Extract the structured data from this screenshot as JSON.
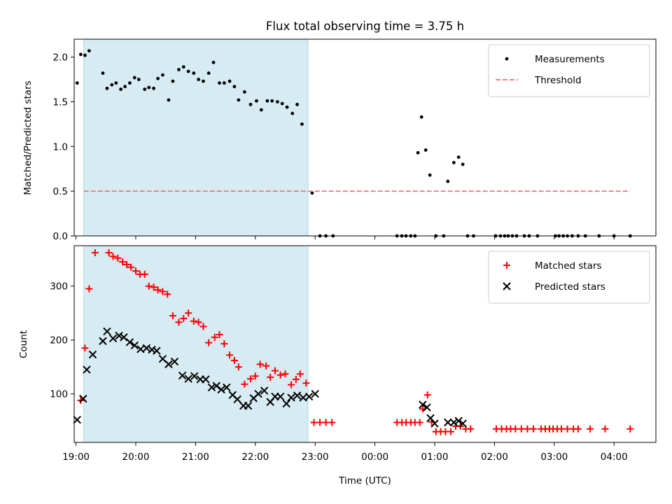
{
  "chart_data": [
    {
      "type": "scatter",
      "title": "Flux total observing time = 3.75 h",
      "ylabel": "Matched/Predicted stars",
      "xlabel": "",
      "x_unit": "hours after 19:00 UTC",
      "xlim": [
        18.97,
        28.7
      ],
      "ylim": [
        0,
        2.2
      ],
      "yticks": [
        0.0,
        0.5,
        1.0,
        1.5,
        2.0
      ],
      "ytick_labels": [
        "0.0",
        "0.5",
        "1.0",
        "1.5",
        "2.0"
      ],
      "legend_position": "top-right",
      "shaded_region": {
        "x": [
          19.13,
          22.88
        ],
        "color": "#add8e6"
      },
      "series": [
        {
          "name": "Measurements",
          "color": "#000000",
          "marker": "dot",
          "x": [
            19.02,
            19.08,
            19.15,
            19.22,
            19.45,
            19.52,
            19.6,
            19.67,
            19.75,
            19.82,
            19.9,
            19.98,
            20.05,
            20.15,
            20.22,
            20.3,
            20.37,
            20.45,
            20.55,
            20.62,
            20.72,
            20.8,
            20.88,
            20.97,
            21.05,
            21.13,
            21.22,
            21.3,
            21.4,
            21.48,
            21.57,
            21.65,
            21.72,
            21.82,
            21.92,
            22.02,
            22.1,
            22.2,
            22.28,
            22.37,
            22.45,
            22.53,
            22.62,
            22.7,
            22.78,
            22.95,
            23.08,
            23.18,
            23.3,
            24.37,
            24.45,
            24.52,
            24.6,
            24.67,
            24.72,
            24.78,
            24.85,
            24.92,
            25.02,
            25.15,
            25.22,
            25.32,
            25.4,
            25.47,
            25.55,
            25.65,
            26.02,
            26.1,
            26.17,
            26.23,
            26.3,
            26.37,
            26.5,
            26.58,
            26.72,
            27.02,
            27.08,
            27.15,
            27.22,
            27.3,
            27.4,
            27.52,
            27.75,
            28.0,
            28.27
          ],
          "y": [
            1.71,
            2.03,
            2.02,
            2.07,
            1.82,
            1.65,
            1.69,
            1.71,
            1.64,
            1.67,
            1.71,
            1.77,
            1.75,
            1.64,
            1.66,
            1.65,
            1.76,
            1.8,
            1.52,
            1.73,
            1.86,
            1.89,
            1.84,
            1.82,
            1.75,
            1.73,
            1.82,
            1.94,
            1.71,
            1.71,
            1.73,
            1.67,
            1.52,
            1.61,
            1.47,
            1.51,
            1.41,
            1.51,
            1.51,
            1.5,
            1.48,
            1.44,
            1.37,
            1.47,
            1.25,
            0.48,
            0.0,
            0.0,
            0.0,
            0.0,
            0.0,
            0.0,
            0.0,
            0.0,
            0.93,
            1.33,
            0.96,
            0.68,
            0.0,
            0.0,
            0.61,
            0.82,
            0.88,
            0.8,
            0.0,
            0.0,
            0.0,
            0.0,
            0.0,
            0.0,
            0.0,
            0.0,
            0.0,
            0.0,
            0.0,
            0.0,
            0.0,
            0.0,
            0.0,
            0.0,
            0.0,
            0.0,
            0.0,
            0.0,
            0.0
          ]
        },
        {
          "name": "Threshold",
          "color": "#f08080",
          "style": "dashed-line",
          "x": [
            19.13,
            28.27
          ],
          "y": [
            0.5,
            0.5
          ]
        }
      ]
    },
    {
      "type": "scatter",
      "title": "",
      "ylabel": "Count",
      "xlabel": "Time (UTC)",
      "x_unit": "hours after 19:00 UTC",
      "xlim": [
        18.97,
        28.7
      ],
      "ylim": [
        10,
        375
      ],
      "yticks": [
        100,
        200,
        300
      ],
      "ytick_labels": [
        "100",
        "200",
        "300"
      ],
      "xticks": [
        19,
        20,
        21,
        22,
        23,
        24,
        25,
        26,
        27,
        28
      ],
      "xtick_labels": [
        "19:00",
        "20:00",
        "21:00",
        "22:00",
        "23:00",
        "00:00",
        "01:00",
        "02:00",
        "03:00",
        "04:00"
      ],
      "legend_position": "top-right",
      "shaded_region": {
        "x": [
          19.13,
          22.88
        ],
        "color": "#add8e6"
      },
      "series": [
        {
          "name": "Matched stars",
          "color": "#ff0000",
          "marker": "plus",
          "x": [
            19.08,
            19.15,
            19.22,
            19.32,
            19.55,
            19.62,
            19.7,
            19.78,
            19.85,
            19.92,
            20.0,
            20.07,
            20.15,
            20.22,
            20.3,
            20.37,
            20.45,
            20.53,
            20.62,
            20.72,
            20.8,
            20.88,
            20.97,
            21.05,
            21.13,
            21.22,
            21.32,
            21.4,
            21.48,
            21.57,
            21.65,
            21.72,
            21.82,
            21.92,
            22.0,
            22.08,
            22.18,
            22.25,
            22.33,
            22.42,
            22.5,
            22.6,
            22.68,
            22.75,
            22.85,
            22.98,
            23.08,
            23.18,
            23.28,
            24.37,
            24.45,
            24.52,
            24.6,
            24.67,
            24.75,
            24.8,
            24.88,
            24.95,
            25.02,
            25.1,
            25.18,
            25.27,
            25.35,
            25.43,
            25.52,
            25.6,
            26.03,
            26.12,
            26.2,
            26.27,
            26.35,
            26.45,
            26.55,
            26.65,
            26.78,
            26.85,
            26.92,
            26.98,
            27.05,
            27.12,
            27.22,
            27.32,
            27.4,
            27.6,
            27.85,
            28.27
          ],
          "y": [
            88,
            185,
            295,
            362,
            362,
            355,
            352,
            345,
            340,
            335,
            328,
            322,
            322,
            300,
            298,
            293,
            290,
            285,
            245,
            233,
            240,
            250,
            235,
            233,
            225,
            195,
            205,
            210,
            193,
            172,
            162,
            150,
            118,
            128,
            133,
            155,
            152,
            131,
            143,
            135,
            137,
            117,
            127,
            137,
            120,
            47,
            47,
            47,
            47,
            47,
            47,
            47,
            47,
            47,
            47,
            72,
            98,
            48,
            30,
            30,
            30,
            30,
            40,
            40,
            35,
            35,
            35,
            35,
            35,
            35,
            35,
            35,
            35,
            35,
            35,
            35,
            35,
            35,
            35,
            35,
            35,
            35,
            35,
            35,
            35,
            35
          ]
        },
        {
          "name": "Predicted stars",
          "color": "#000000",
          "marker": "x",
          "x": [
            19.02,
            19.12,
            19.18,
            19.28,
            19.45,
            19.52,
            19.62,
            19.72,
            19.8,
            19.9,
            19.98,
            20.08,
            20.18,
            20.27,
            20.35,
            20.45,
            20.55,
            20.65,
            20.78,
            20.88,
            20.98,
            21.08,
            21.17,
            21.27,
            21.35,
            21.43,
            21.52,
            21.62,
            21.7,
            21.8,
            21.88,
            21.97,
            22.05,
            22.15,
            22.25,
            22.33,
            22.42,
            22.52,
            22.6,
            22.7,
            22.8,
            22.9,
            23.0,
            24.8,
            24.87,
            24.93,
            25.0,
            25.22,
            25.32,
            25.4,
            25.47
          ],
          "y": [
            52,
            91,
            145,
            173,
            198,
            216,
            203,
            208,
            205,
            196,
            190,
            183,
            185,
            182,
            180,
            165,
            155,
            160,
            134,
            128,
            133,
            127,
            127,
            112,
            115,
            108,
            112,
            98,
            90,
            78,
            78,
            92,
            100,
            106,
            85,
            95,
            95,
            82,
            93,
            97,
            93,
            95,
            100,
            80,
            75,
            55,
            45,
            47,
            47,
            50,
            45
          ]
        }
      ]
    }
  ]
}
